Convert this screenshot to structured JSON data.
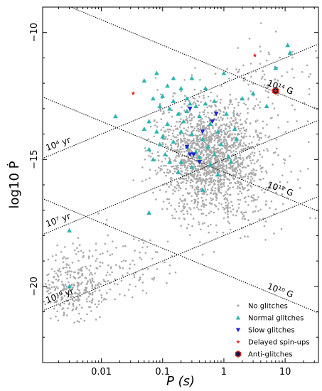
{
  "chart_data": {
    "type": "scatter",
    "xlabel": "P (s)",
    "ylabel": "log10 Ṗ",
    "x_scale": "log",
    "xlim": [
      0.0011,
      35
    ],
    "ylim": [
      -23,
      -9
    ],
    "x_ticks": [
      {
        "v": 0.01,
        "label": "0.01"
      },
      {
        "v": 0.1,
        "label": "0.1"
      },
      {
        "v": 1,
        "label": "1"
      },
      {
        "v": 10,
        "label": "10"
      }
    ],
    "y_ticks": [
      {
        "v": -10,
        "label": "−10"
      },
      {
        "v": -15,
        "label": "−15"
      },
      {
        "v": -20,
        "label": "−20"
      }
    ],
    "legend_position": "bottom-right",
    "colors": {
      "no_glitches": "#a9a9a9",
      "normal_glitches": "#2cb5b0",
      "slow_glitches": "#1c23d6",
      "delayed_spinups": "#e0271c",
      "anti_glitches": "#10104a"
    },
    "series": [
      {
        "name": "No glitches",
        "marker": "dot",
        "color": "#a9a9a9",
        "points": []
      },
      {
        "name": "Normal glitches",
        "marker": "triangle-up",
        "color": "#2cb5b0",
        "points": [
          [
            0.017,
            -13.3
          ],
          [
            0.003,
            -17.8
          ],
          [
            0.06,
            -17.1
          ],
          [
            0.003,
            -20.0
          ],
          [
            0.05,
            -11.9
          ],
          [
            0.08,
            -11.6
          ],
          [
            0.12,
            -12.1
          ],
          [
            0.1,
            -12.5
          ],
          [
            0.15,
            -12.7
          ],
          [
            0.2,
            -12.2
          ],
          [
            0.25,
            -12.6
          ],
          [
            0.07,
            -12.6
          ],
          [
            0.09,
            -12.9
          ],
          [
            0.13,
            -13.0
          ],
          [
            0.18,
            -13.2
          ],
          [
            0.22,
            -13.5
          ],
          [
            0.28,
            -12.8
          ],
          [
            0.35,
            -12.9
          ],
          [
            0.4,
            -13.3
          ],
          [
            0.5,
            -12.8
          ],
          [
            0.6,
            -13.6
          ],
          [
            0.8,
            -13.9
          ],
          [
            1.1,
            -13.2
          ],
          [
            0.06,
            -13.5
          ],
          [
            0.08,
            -13.9
          ],
          [
            0.1,
            -14.1
          ],
          [
            0.12,
            -13.6
          ],
          [
            0.15,
            -14.3
          ],
          [
            0.2,
            -13.9
          ],
          [
            0.25,
            -14.5
          ],
          [
            0.3,
            -14.0
          ],
          [
            0.35,
            -14.7
          ],
          [
            0.45,
            -14.2
          ],
          [
            0.55,
            -14.5
          ],
          [
            0.7,
            -14.8
          ],
          [
            0.9,
            -14.4
          ],
          [
            1.2,
            -14.9
          ],
          [
            1.5,
            -13.8
          ],
          [
            2.0,
            -12.6
          ],
          [
            3.0,
            -12.4
          ],
          [
            7.0,
            -11.4
          ],
          [
            11.0,
            -10.5
          ],
          [
            12.0,
            -10.8
          ],
          [
            5.0,
            -12.9
          ],
          [
            1.0,
            -11.6
          ],
          [
            0.5,
            -12.2
          ],
          [
            0.4,
            -14.9
          ],
          [
            0.3,
            -15.3
          ],
          [
            0.2,
            -15.1
          ],
          [
            0.18,
            -15.5
          ],
          [
            0.6,
            -15.2
          ],
          [
            0.8,
            -15.6
          ],
          [
            1.3,
            -15.1
          ],
          [
            0.45,
            -16.2
          ],
          [
            0.06,
            -14.6
          ],
          [
            0.05,
            -13.8
          ],
          [
            0.07,
            -15.0
          ],
          [
            0.09,
            -14.4
          ],
          [
            0.25,
            -13.1
          ],
          [
            0.3,
            -11.8
          ],
          [
            0.15,
            -11.8
          ],
          [
            0.7,
            -12.7
          ],
          [
            1.6,
            -14.2
          ],
          [
            0.11,
            -14.8
          ],
          [
            0.13,
            -15.1
          ]
        ]
      },
      {
        "name": "Slow glitches",
        "marker": "triangle-down",
        "color": "#1c23d6",
        "points": [
          [
            0.28,
            -13.0
          ],
          [
            0.75,
            -13.2
          ],
          [
            0.45,
            -13.9
          ],
          [
            0.25,
            -14.5
          ],
          [
            0.32,
            -14.8
          ],
          [
            0.4,
            -15.1
          ],
          [
            0.65,
            -13.5
          ],
          [
            0.28,
            -14.8
          ]
        ]
      },
      {
        "name": "Delayed spin-ups",
        "marker": "star",
        "color": "#e0271c",
        "points": [
          [
            0.033,
            -12.4
          ],
          [
            3.2,
            -10.9
          ],
          [
            7.0,
            -12.3
          ]
        ]
      },
      {
        "name": "Anti-glitches",
        "marker": "hexagon",
        "color": "#10104a",
        "points": [
          [
            7.0,
            -12.3
          ]
        ]
      }
    ],
    "reference_lines": [
      {
        "label": "10⁴ yr",
        "kind": "characteristic-age",
        "slope": 1,
        "p0": [
          0.001,
          -15.0
        ]
      },
      {
        "label": "10⁷ yr",
        "kind": "characteristic-age",
        "slope": 1,
        "p0": [
          0.001,
          -18.0
        ]
      },
      {
        "label": "10¹⁰ yr",
        "kind": "characteristic-age",
        "slope": 1,
        "p0": [
          0.001,
          -21.0
        ]
      },
      {
        "label": "10¹⁴ G",
        "kind": "magnetic-field",
        "slope": -1,
        "p0": [
          1.0,
          -11.5
        ]
      },
      {
        "label": "10¹² G",
        "kind": "magnetic-field",
        "slope": -1,
        "p0": [
          1.0,
          -15.5
        ]
      },
      {
        "label": "10¹⁰ G",
        "kind": "magnetic-field",
        "slope": -1,
        "p0": [
          1.0,
          -19.5
        ]
      }
    ]
  }
}
